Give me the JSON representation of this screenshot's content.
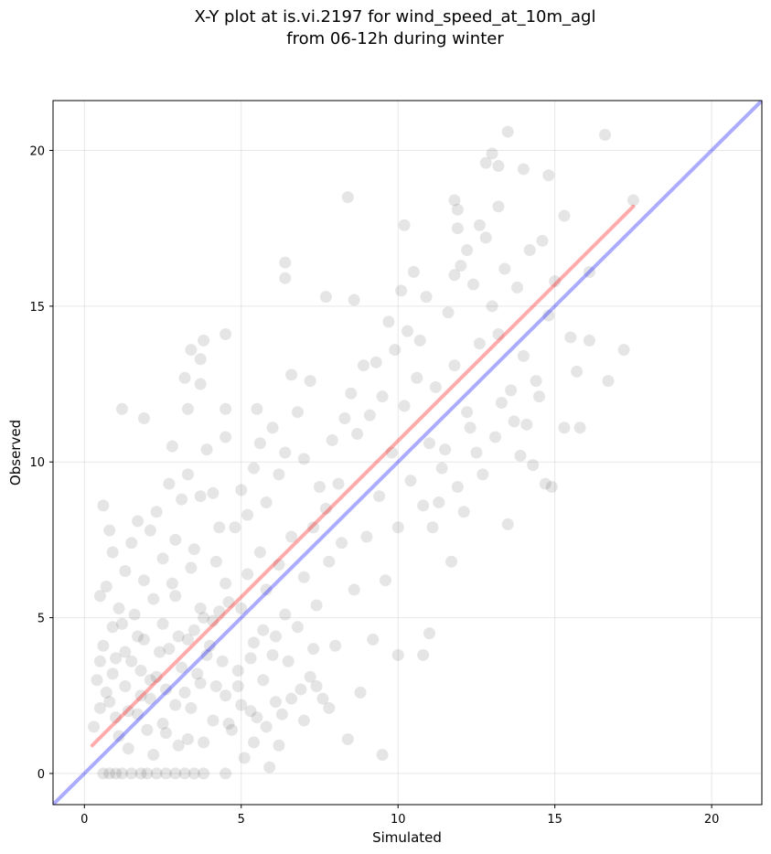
{
  "chart_data": {
    "type": "scatter",
    "title_line1": "X-Y plot at is.vi.2197 for wind_speed_at_10m_agl",
    "title_line2": "from 06-12h during winter",
    "xlabel": "Simulated",
    "ylabel": "Observed",
    "xlim": [
      -1.0,
      21.6
    ],
    "ylim": [
      -1.0,
      21.6
    ],
    "xticks": [
      0,
      5,
      10,
      15,
      20
    ],
    "yticks": [
      0,
      5,
      10,
      15,
      20
    ],
    "xtick_labels": [
      "0",
      "5",
      "10",
      "15",
      "20"
    ],
    "ytick_labels": [
      "0",
      "5",
      "10",
      "15",
      "20"
    ],
    "grid": true,
    "colors": {
      "points": "#000000",
      "regression_line": "#ff0000",
      "identity_line": "#0000ff"
    },
    "series": [
      {
        "type": "scatter",
        "points": [
          [
            0.6,
            0.0
          ],
          [
            0.8,
            0.0
          ],
          [
            1.0,
            0.0
          ],
          [
            1.2,
            0.0
          ],
          [
            1.5,
            0.0
          ],
          [
            1.8,
            0.0
          ],
          [
            2.0,
            0.0
          ],
          [
            2.3,
            0.0
          ],
          [
            2.6,
            0.0
          ],
          [
            2.9,
            0.0
          ],
          [
            3.2,
            0.0
          ],
          [
            3.5,
            0.0
          ],
          [
            3.8,
            0.0
          ],
          [
            4.5,
            0.0
          ],
          [
            0.3,
            1.5
          ],
          [
            0.5,
            2.1
          ],
          [
            0.7,
            2.6
          ],
          [
            0.9,
            3.2
          ],
          [
            1.1,
            1.2
          ],
          [
            1.3,
            2.8
          ],
          [
            1.5,
            3.6
          ],
          [
            1.7,
            1.9
          ],
          [
            1.9,
            4.3
          ],
          [
            2.1,
            2.4
          ],
          [
            2.3,
            3.1
          ],
          [
            2.5,
            1.6
          ],
          [
            2.7,
            4.0
          ],
          [
            2.9,
            2.2
          ],
          [
            3.1,
            3.4
          ],
          [
            3.3,
            1.1
          ],
          [
            3.5,
            4.6
          ],
          [
            3.7,
            2.9
          ],
          [
            3.9,
            3.8
          ],
          [
            4.1,
            1.7
          ],
          [
            4.3,
            5.2
          ],
          [
            4.5,
            2.5
          ],
          [
            0.4,
            3.0
          ],
          [
            0.6,
            4.1
          ],
          [
            0.8,
            2.3
          ],
          [
            1.0,
            3.7
          ],
          [
            1.2,
            4.8
          ],
          [
            1.4,
            2.0
          ],
          [
            1.6,
            5.1
          ],
          [
            1.8,
            3.3
          ],
          [
            2.0,
            1.4
          ],
          [
            2.2,
            5.6
          ],
          [
            2.4,
            3.9
          ],
          [
            2.6,
            2.7
          ],
          [
            2.8,
            6.1
          ],
          [
            3.0,
            4.4
          ],
          [
            3.2,
            2.6
          ],
          [
            3.4,
            6.6
          ],
          [
            3.6,
            3.2
          ],
          [
            3.8,
            5.0
          ],
          [
            4.0,
            4.1
          ],
          [
            4.2,
            6.8
          ],
          [
            4.4,
            3.6
          ],
          [
            4.6,
            5.5
          ],
          [
            0.5,
            5.7
          ],
          [
            0.7,
            6.0
          ],
          [
            0.9,
            7.1
          ],
          [
            1.1,
            5.3
          ],
          [
            1.3,
            6.5
          ],
          [
            1.5,
            7.4
          ],
          [
            1.7,
            8.1
          ],
          [
            1.9,
            6.2
          ],
          [
            2.1,
            7.8
          ],
          [
            2.3,
            8.4
          ],
          [
            2.5,
            6.9
          ],
          [
            2.7,
            9.3
          ],
          [
            2.9,
            7.5
          ],
          [
            3.1,
            8.8
          ],
          [
            3.3,
            9.6
          ],
          [
            3.5,
            7.2
          ],
          [
            3.7,
            8.9
          ],
          [
            3.9,
            10.4
          ],
          [
            4.1,
            9.0
          ],
          [
            4.3,
            7.9
          ],
          [
            0.6,
            8.6
          ],
          [
            0.8,
            7.8
          ],
          [
            1.2,
            11.7
          ],
          [
            1.9,
            11.4
          ],
          [
            2.8,
            10.5
          ],
          [
            3.2,
            12.7
          ],
          [
            3.4,
            13.6
          ],
          [
            3.7,
            13.3
          ],
          [
            3.8,
            13.9
          ],
          [
            4.5,
            14.1
          ],
          [
            3.3,
            11.7
          ],
          [
            3.7,
            12.5
          ],
          [
            4.5,
            11.7
          ],
          [
            4.5,
            10.8
          ],
          [
            4.7,
            1.4
          ],
          [
            4.9,
            2.8
          ],
          [
            5.1,
            0.5
          ],
          [
            5.3,
            3.7
          ],
          [
            5.5,
            1.8
          ],
          [
            5.7,
            4.6
          ],
          [
            5.9,
            0.2
          ],
          [
            6.1,
            2.3
          ],
          [
            6.3,
            1.9
          ],
          [
            5.0,
            5.3
          ],
          [
            5.2,
            6.4
          ],
          [
            5.4,
            4.2
          ],
          [
            5.6,
            7.1
          ],
          [
            5.8,
            5.9
          ],
          [
            6.0,
            3.8
          ],
          [
            6.2,
            6.7
          ],
          [
            6.4,
            5.1
          ],
          [
            6.6,
            7.6
          ],
          [
            6.8,
            4.7
          ],
          [
            7.0,
            6.3
          ],
          [
            4.8,
            7.9
          ],
          [
            5.0,
            9.1
          ],
          [
            5.2,
            8.3
          ],
          [
            5.4,
            9.8
          ],
          [
            5.6,
            10.6
          ],
          [
            5.8,
            8.7
          ],
          [
            6.0,
            11.1
          ],
          [
            6.2,
            9.6
          ],
          [
            6.4,
            10.3
          ],
          [
            6.6,
            12.8
          ],
          [
            6.8,
            11.6
          ],
          [
            7.0,
            10.1
          ],
          [
            6.4,
            16.4
          ],
          [
            6.4,
            15.9
          ],
          [
            5.5,
            11.7
          ],
          [
            7.2,
            3.1
          ],
          [
            7.4,
            5.4
          ],
          [
            7.6,
            2.4
          ],
          [
            7.8,
            6.8
          ],
          [
            8.0,
            4.1
          ],
          [
            8.2,
            7.4
          ],
          [
            8.4,
            1.1
          ],
          [
            8.6,
            5.9
          ],
          [
            8.8,
            2.6
          ],
          [
            7.3,
            7.9
          ],
          [
            7.5,
            9.2
          ],
          [
            7.7,
            8.5
          ],
          [
            7.9,
            10.7
          ],
          [
            8.1,
            9.3
          ],
          [
            8.3,
            11.4
          ],
          [
            8.5,
            12.2
          ],
          [
            8.7,
            10.9
          ],
          [
            8.9,
            13.1
          ],
          [
            7.2,
            12.6
          ],
          [
            7.7,
            15.3
          ],
          [
            8.4,
            18.5
          ],
          [
            8.6,
            15.2
          ],
          [
            9.0,
            7.6
          ],
          [
            9.2,
            4.3
          ],
          [
            9.4,
            8.9
          ],
          [
            9.6,
            6.2
          ],
          [
            9.8,
            10.3
          ],
          [
            10.0,
            7.9
          ],
          [
            10.2,
            11.8
          ],
          [
            10.4,
            9.4
          ],
          [
            10.6,
            12.7
          ],
          [
            10.8,
            8.6
          ],
          [
            9.1,
            11.5
          ],
          [
            9.3,
            13.2
          ],
          [
            9.5,
            12.1
          ],
          [
            9.7,
            14.5
          ],
          [
            9.9,
            13.6
          ],
          [
            10.1,
            15.5
          ],
          [
            10.3,
            14.2
          ],
          [
            10.5,
            16.1
          ],
          [
            10.7,
            13.9
          ],
          [
            10.9,
            15.3
          ],
          [
            9.5,
            0.6
          ],
          [
            10.0,
            3.8
          ],
          [
            10.8,
            3.8
          ],
          [
            11.0,
            4.5
          ],
          [
            10.2,
            17.6
          ],
          [
            11.0,
            10.6
          ],
          [
            11.2,
            12.4
          ],
          [
            11.4,
            9.8
          ],
          [
            11.6,
            14.8
          ],
          [
            11.8,
            13.1
          ],
          [
            12.0,
            16.3
          ],
          [
            12.2,
            11.6
          ],
          [
            12.4,
            15.7
          ],
          [
            12.6,
            13.8
          ],
          [
            12.8,
            17.2
          ],
          [
            11.1,
            7.9
          ],
          [
            11.3,
            8.7
          ],
          [
            11.5,
            10.4
          ],
          [
            11.7,
            6.8
          ],
          [
            11.9,
            9.2
          ],
          [
            12.1,
            8.4
          ],
          [
            12.3,
            11.1
          ],
          [
            12.5,
            10.3
          ],
          [
            12.7,
            9.6
          ],
          [
            11.9,
            18.1
          ],
          [
            11.8,
            18.4
          ],
          [
            11.9,
            17.5
          ],
          [
            11.8,
            16.0
          ],
          [
            12.2,
            16.8
          ],
          [
            12.6,
            17.6
          ],
          [
            12.8,
            19.6
          ],
          [
            13.0,
            19.9
          ],
          [
            13.2,
            19.5
          ],
          [
            13.2,
            18.2
          ],
          [
            13.5,
            20.6
          ],
          [
            14.0,
            19.4
          ],
          [
            14.8,
            19.2
          ],
          [
            16.6,
            20.5
          ],
          [
            13.0,
            15.0
          ],
          [
            13.2,
            14.1
          ],
          [
            13.4,
            16.2
          ],
          [
            13.6,
            12.3
          ],
          [
            13.8,
            15.6
          ],
          [
            14.0,
            13.4
          ],
          [
            14.2,
            16.8
          ],
          [
            14.4,
            12.6
          ],
          [
            14.6,
            17.1
          ],
          [
            14.8,
            14.7
          ],
          [
            13.1,
            10.8
          ],
          [
            13.3,
            11.9
          ],
          [
            13.5,
            8.0
          ],
          [
            13.7,
            11.3
          ],
          [
            13.9,
            10.2
          ],
          [
            14.1,
            11.2
          ],
          [
            14.3,
            9.9
          ],
          [
            14.5,
            12.1
          ],
          [
            14.7,
            9.3
          ],
          [
            14.9,
            9.2
          ],
          [
            15.0,
            15.8
          ],
          [
            15.3,
            17.9
          ],
          [
            15.3,
            11.1
          ],
          [
            15.5,
            14.0
          ],
          [
            15.7,
            12.9
          ],
          [
            15.8,
            11.1
          ],
          [
            16.1,
            16.1
          ],
          [
            16.1,
            13.9
          ],
          [
            16.7,
            12.6
          ],
          [
            17.2,
            13.6
          ],
          [
            17.5,
            18.4
          ],
          [
            0.5,
            3.6
          ],
          [
            0.9,
            4.7
          ],
          [
            1.3,
            3.9
          ],
          [
            1.7,
            4.4
          ],
          [
            2.1,
            3.0
          ],
          [
            2.5,
            4.8
          ],
          [
            2.9,
            5.7
          ],
          [
            3.3,
            4.3
          ],
          [
            3.7,
            5.3
          ],
          [
            4.1,
            4.9
          ],
          [
            4.5,
            6.1
          ],
          [
            4.9,
            3.3
          ],
          [
            5.3,
            2.0
          ],
          [
            5.7,
            3.0
          ],
          [
            6.1,
            4.4
          ],
          [
            6.5,
            3.6
          ],
          [
            6.9,
            2.7
          ],
          [
            7.3,
            4.0
          ],
          [
            1.0,
            1.8
          ],
          [
            1.4,
            0.8
          ],
          [
            1.8,
            2.5
          ],
          [
            2.2,
            0.6
          ],
          [
            2.6,
            1.3
          ],
          [
            3.0,
            0.9
          ],
          [
            3.4,
            2.1
          ],
          [
            3.8,
            1.0
          ],
          [
            4.2,
            2.8
          ],
          [
            4.6,
            1.6
          ],
          [
            5.0,
            2.2
          ],
          [
            5.4,
            1.0
          ],
          [
            5.8,
            1.5
          ],
          [
            6.2,
            0.9
          ],
          [
            6.6,
            2.4
          ],
          [
            7.0,
            1.7
          ],
          [
            7.4,
            2.8
          ],
          [
            7.8,
            2.1
          ]
        ]
      },
      {
        "type": "line",
        "name": "",
        "x": [
          0.25,
          17.5
        ],
        "y": [
          0.9,
          18.2
        ]
      },
      {
        "type": "line",
        "name": "",
        "x": [
          -1.0,
          21.6
        ],
        "y": [
          -1.0,
          21.6
        ]
      }
    ]
  }
}
